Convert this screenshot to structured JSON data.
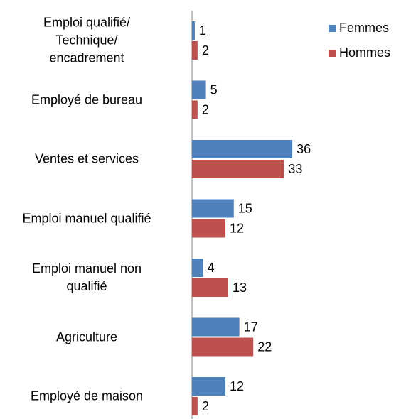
{
  "chart_data": {
    "type": "hbar",
    "categories": [
      "Emploi qualifié/\nTechnique/\nencadrement",
      "Employé de bureau",
      "Ventes et services",
      "Emploi manuel qualifié",
      "Emploi manuel non\nqualifié",
      "Agriculture",
      "Employé de maison"
    ],
    "series": [
      {
        "name": "Femmes",
        "color": "#4f81bd",
        "values": [
          1,
          5,
          36,
          15,
          4,
          17,
          12
        ]
      },
      {
        "name": "Hommes",
        "color": "#c0504d",
        "values": [
          2,
          2,
          33,
          12,
          13,
          22,
          2
        ]
      }
    ],
    "legend": "top-right"
  }
}
